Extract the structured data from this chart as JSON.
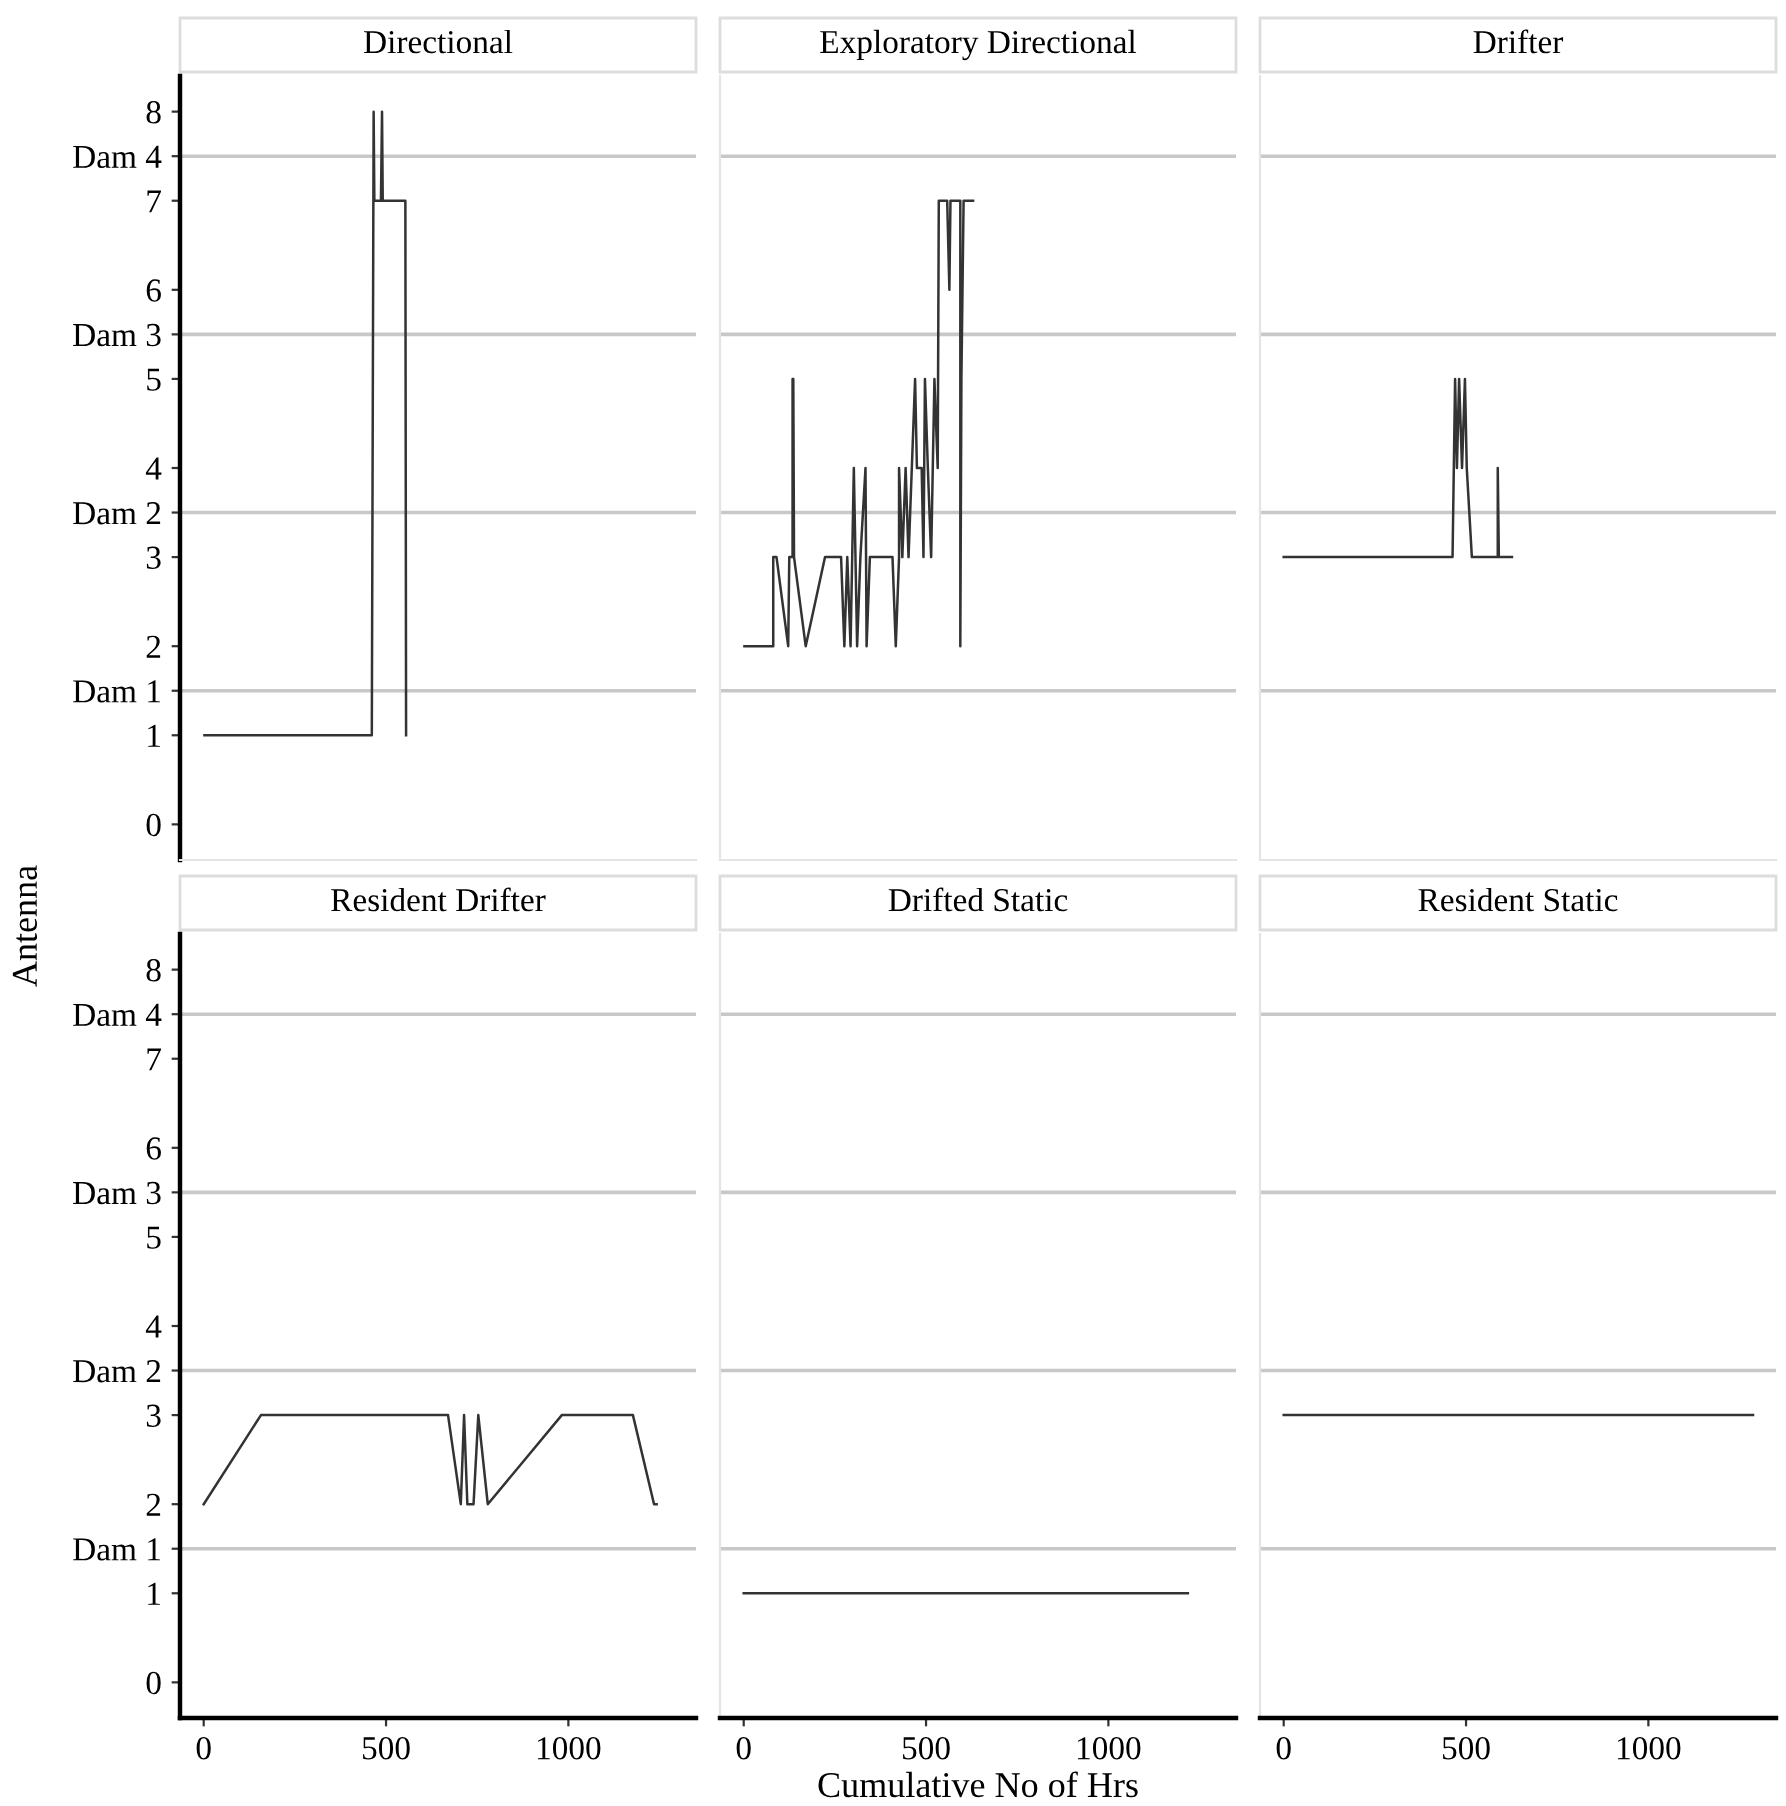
{
  "chart_data": [
    {
      "type": "line",
      "title": "Directional",
      "ylabel": "Antenna",
      "tick_labels": "y",
      "series": [
        {
          "color": "#333333",
          "x": [
            2,
            461,
            466,
            468,
            486,
            489,
            491,
            553,
            555
          ],
          "values": [
            1,
            1,
            8,
            7,
            7,
            8,
            7,
            7,
            1
          ]
        }
      ],
      "xlim": [
        -65,
        1350
      ],
      "xticks": [
        0,
        500,
        1000
      ],
      "ylim": [
        -0.4,
        8.4
      ],
      "yticks": [
        0,
        1,
        {
          "value": 1.5,
          "label": "Dam 1"
        },
        2,
        3,
        {
          "value": 3.5,
          "label": "Dam 2"
        },
        4,
        5,
        {
          "value": 5.5,
          "label": "Dam 3"
        },
        6,
        7,
        {
          "value": 7.5,
          "label": "Dam 4"
        },
        8
      ],
      "ref_lines": [
        {
          "axis": "y",
          "value": 1.5,
          "color": "#c8c8c8"
        },
        {
          "axis": "y",
          "value": 3.5,
          "color": "#c8c8c8"
        },
        {
          "axis": "y",
          "value": 5.5,
          "color": "#c8c8c8"
        },
        {
          "axis": "y",
          "value": 7.5,
          "color": "#c8c8c8"
        }
      ]
    },
    {
      "type": "line",
      "title": "Exploratory Directional",
      "tick_labels": false,
      "series": [
        {
          "color": "#333333",
          "x": [
            2,
            81,
            81,
            90,
            122,
            125,
            134,
            134,
            136,
            136,
            138,
            170,
            223,
            267,
            276,
            284,
            293,
            302,
            311,
            320,
            334,
            337,
            346,
            408,
            417,
            426,
            426,
            435,
            444,
            452,
            461,
            470,
            475,
            488,
            493,
            497,
            505,
            514,
            523,
            532,
            535,
            558,
            564,
            567,
            594,
            594,
            597,
            603,
            629
          ],
          "values": [
            2,
            2,
            3,
            3,
            2,
            3,
            3,
            5,
            3,
            5,
            3,
            2,
            3,
            3,
            2,
            3,
            2,
            4,
            2,
            3,
            4,
            2,
            3,
            3,
            2,
            3,
            4,
            3,
            4,
            3,
            4,
            5,
            4,
            4,
            3,
            5,
            4,
            3,
            5,
            4,
            7,
            7,
            6,
            7,
            7,
            2,
            5,
            7,
            7
          ]
        }
      ],
      "xlim": [
        -65,
        1350
      ],
      "xticks": [
        0,
        500,
        1000
      ],
      "ylim": [
        -0.4,
        8.4
      ],
      "yticks": [
        0,
        1,
        {
          "value": 1.5,
          "label": null
        },
        2,
        3,
        {
          "value": 3.5,
          "label": null
        },
        4,
        5,
        {
          "value": 5.5,
          "label": null
        },
        6,
        7,
        {
          "value": 7.5,
          "label": null
        },
        8
      ],
      "ref_lines": [
        {
          "axis": "y",
          "value": 1.5,
          "color": "#c8c8c8"
        },
        {
          "axis": "y",
          "value": 3.5,
          "color": "#c8c8c8"
        },
        {
          "axis": "y",
          "value": 5.5,
          "color": "#c8c8c8"
        },
        {
          "axis": "y",
          "value": 7.5,
          "color": "#c8c8c8"
        }
      ]
    },
    {
      "type": "line",
      "title": "Drifter",
      "tick_labels": false,
      "series": [
        {
          "color": "#333333",
          "x": [
            0,
            463,
            470,
            475,
            481,
            489,
            497,
            502,
            516,
            587,
            587,
            590,
            626
          ],
          "values": [
            3,
            3,
            5,
            4,
            5,
            4,
            5,
            4,
            3,
            3,
            4,
            3,
            3
          ]
        }
      ],
      "xlim": [
        -65,
        1350
      ],
      "xticks": [
        0,
        500,
        1000
      ],
      "ylim": [
        -0.4,
        8.4
      ],
      "yticks": [
        0,
        1,
        {
          "value": 1.5,
          "label": null
        },
        2,
        3,
        {
          "value": 3.5,
          "label": null
        },
        4,
        5,
        {
          "value": 5.5,
          "label": null
        },
        6,
        7,
        {
          "value": 7.5,
          "label": null
        },
        8
      ],
      "ref_lines": [
        {
          "axis": "y",
          "value": 1.5,
          "color": "#c8c8c8"
        },
        {
          "axis": "y",
          "value": 3.5,
          "color": "#c8c8c8"
        },
        {
          "axis": "y",
          "value": 5.5,
          "color": "#c8c8c8"
        },
        {
          "axis": "y",
          "value": 7.5,
          "color": "#c8c8c8"
        }
      ]
    },
    {
      "type": "line",
      "title": "Resident Drifter",
      "series": [
        {
          "color": "#333333",
          "x": [
            0,
            157,
            670,
            705,
            714,
            723,
            740,
            753,
            779,
            982,
            1177,
            1235,
            1242
          ],
          "values": [
            2,
            3,
            3,
            2,
            3,
            2,
            2,
            3,
            2,
            3,
            3,
            2,
            2
          ]
        }
      ],
      "xlim": [
        -65,
        1350
      ],
      "xticks": [
        0,
        500,
        1000
      ],
      "ylim": [
        -0.4,
        8.4
      ],
      "yticks": [
        0,
        1,
        {
          "value": 1.5,
          "label": "Dam 1"
        },
        2,
        3,
        {
          "value": 3.5,
          "label": "Dam 2"
        },
        4,
        5,
        {
          "value": 5.5,
          "label": "Dam 3"
        },
        6,
        7,
        {
          "value": 7.5,
          "label": "Dam 4"
        },
        8
      ],
      "ref_lines": [
        {
          "axis": "y",
          "value": 1.5,
          "color": "#c8c8c8"
        },
        {
          "axis": "y",
          "value": 3.5,
          "color": "#c8c8c8"
        },
        {
          "axis": "y",
          "value": 5.5,
          "color": "#c8c8c8"
        },
        {
          "axis": "y",
          "value": 7.5,
          "color": "#c8c8c8"
        }
      ]
    },
    {
      "type": "line",
      "title": "Drifted Static",
      "xlabel": "Cumulative No of Hrs",
      "tick_labels": "x",
      "series": [
        {
          "color": "#333333",
          "x": [
            0,
            1218
          ],
          "values": [
            1,
            1
          ]
        }
      ],
      "xlim": [
        -65,
        1350
      ],
      "xticks": [
        0,
        500,
        1000
      ],
      "ylim": [
        -0.4,
        8.4
      ],
      "yticks": [
        0,
        1,
        {
          "value": 1.5,
          "label": null
        },
        2,
        3,
        {
          "value": 3.5,
          "label": null
        },
        4,
        5,
        {
          "value": 5.5,
          "label": null
        },
        6,
        7,
        {
          "value": 7.5,
          "label": null
        },
        8
      ],
      "ref_lines": [
        {
          "axis": "y",
          "value": 1.5,
          "color": "#c8c8c8"
        },
        {
          "axis": "y",
          "value": 3.5,
          "color": "#c8c8c8"
        },
        {
          "axis": "y",
          "value": 5.5,
          "color": "#c8c8c8"
        },
        {
          "axis": "y",
          "value": 7.5,
          "color": "#c8c8c8"
        }
      ]
    },
    {
      "type": "line",
      "title": "Resident Static",
      "tick_labels": "x",
      "series": [
        {
          "color": "#333333",
          "x": [
            0,
            1287
          ],
          "values": [
            3,
            3
          ]
        }
      ],
      "xlim": [
        -65,
        1350
      ],
      "xticks": [
        0,
        500,
        1000
      ],
      "ylim": [
        -0.4,
        8.4
      ],
      "yticks": [
        0,
        1,
        {
          "value": 1.5,
          "label": null
        },
        2,
        3,
        {
          "value": 3.5,
          "label": null
        },
        4,
        5,
        {
          "value": 5.5,
          "label": null
        },
        6,
        7,
        {
          "value": 7.5,
          "label": null
        },
        8
      ],
      "ref_lines": [
        {
          "axis": "y",
          "value": 1.5,
          "color": "#c8c8c8"
        },
        {
          "axis": "y",
          "value": 3.5,
          "color": "#c8c8c8"
        },
        {
          "axis": "y",
          "value": 5.5,
          "color": "#c8c8c8"
        },
        {
          "axis": "y",
          "value": 7.5,
          "color": "#c8c8c8"
        }
      ]
    }
  ]
}
